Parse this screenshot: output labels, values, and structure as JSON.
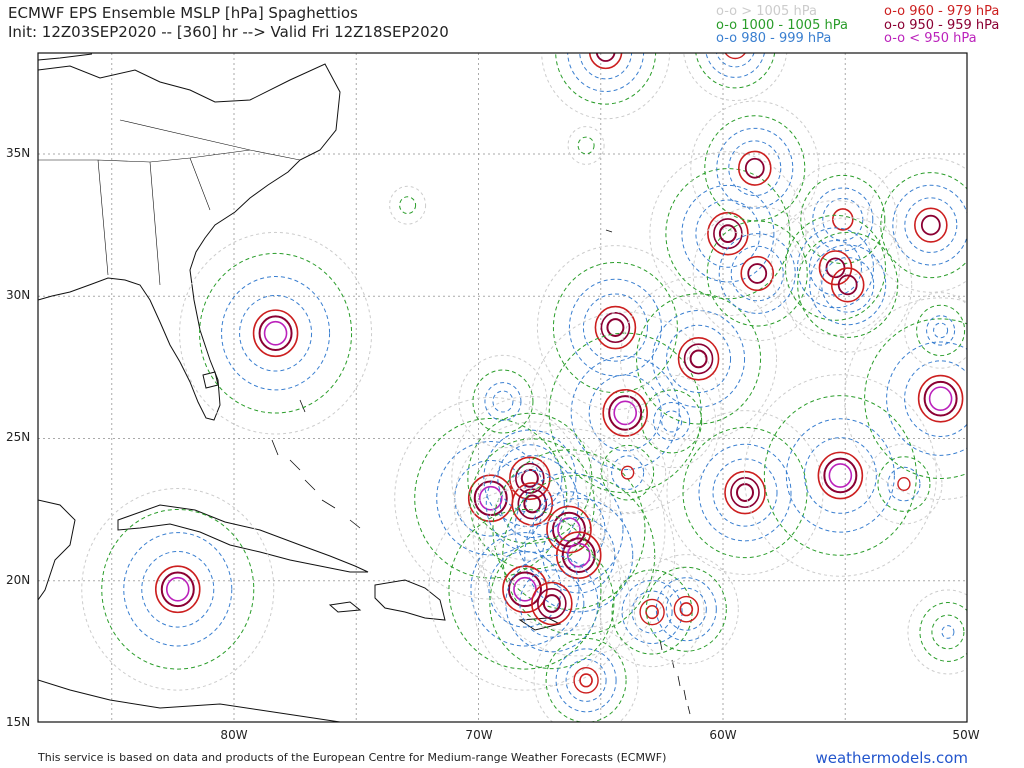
{
  "header": {
    "title_line1": "ECMWF EPS Ensemble MSLP [hPa] Spaghettios",
    "title_line2": "Init: 12Z03SEP2020 -- [360] hr --> Valid Fri 12Z18SEP2020"
  },
  "legend": [
    {
      "label": "o-o > 1005 hPa",
      "color": "#cccccc"
    },
    {
      "label": "o-o 1000 - 1005 hPa",
      "color": "#2a9d2a"
    },
    {
      "label": "o-o 980 - 999 hPa",
      "color": "#3a7fd0"
    },
    {
      "label": "o-o 960 - 979 hPa",
      "color": "#cc1f1f"
    },
    {
      "label": "o-o 950 - 959 hPa",
      "color": "#8b0033"
    },
    {
      "label": "o-o < 950 hPa",
      "color": "#bb22bb"
    }
  ],
  "axes": {
    "lat_labels": [
      "35N",
      "30N",
      "25N",
      "20N",
      "15N"
    ],
    "lon_labels": [
      "80W",
      "70W",
      "60W",
      "50W"
    ]
  },
  "footer": {
    "credit": "This service is based on data and products of the European Centre for Medium-range Weather Forecasts (ECMWF)",
    "brand": "weathermodels.com"
  },
  "storms": [
    {
      "lon": -78.3,
      "lat": 28.7,
      "min": "950"
    },
    {
      "lon": -82.3,
      "lat": 19.7,
      "min": "950"
    },
    {
      "lon": -64.4,
      "lat": 28.9,
      "min": "955"
    },
    {
      "lon": -64.0,
      "lat": 25.9,
      "min": "950"
    },
    {
      "lon": -61.0,
      "lat": 27.8,
      "min": "955"
    },
    {
      "lon": -69.5,
      "lat": 22.9,
      "min": "950"
    },
    {
      "lon": -67.9,
      "lat": 23.6,
      "min": "955"
    },
    {
      "lon": -67.8,
      "lat": 22.7,
      "min": "955"
    },
    {
      "lon": -66.3,
      "lat": 21.8,
      "min": "950"
    },
    {
      "lon": -65.9,
      "lat": 20.9,
      "min": "950"
    },
    {
      "lon": -68.1,
      "lat": 19.7,
      "min": "950"
    },
    {
      "lon": -67.0,
      "lat": 19.2,
      "min": "955"
    },
    {
      "lon": -65.6,
      "lat": 16.5,
      "min": "965"
    },
    {
      "lon": -62.9,
      "lat": 18.9,
      "min": "965"
    },
    {
      "lon": -61.5,
      "lat": 19.0,
      "min": "965"
    },
    {
      "lon": -59.1,
      "lat": 23.1,
      "min": "955"
    },
    {
      "lon": -55.2,
      "lat": 23.7,
      "min": "950"
    },
    {
      "lon": -52.6,
      "lat": 23.4,
      "min": "975"
    },
    {
      "lon": -51.1,
      "lat": 26.4,
      "min": "950"
    },
    {
      "lon": -51.1,
      "lat": 28.8,
      "min": "985"
    },
    {
      "lon": -51.5,
      "lat": 32.5,
      "min": "960"
    },
    {
      "lon": -55.1,
      "lat": 32.7,
      "min": "970"
    },
    {
      "lon": -59.8,
      "lat": 32.2,
      "min": "955"
    },
    {
      "lon": -58.7,
      "lat": 34.5,
      "min": "960"
    },
    {
      "lon": -58.6,
      "lat": 30.8,
      "min": "960"
    },
    {
      "lon": -55.4,
      "lat": 31.0,
      "min": "960"
    },
    {
      "lon": -54.9,
      "lat": 30.4,
      "min": "960"
    },
    {
      "lon": -64.8,
      "lat": 38.6,
      "min": "960"
    },
    {
      "lon": -59.5,
      "lat": 38.8,
      "min": "965"
    },
    {
      "lon": -63.9,
      "lat": 23.8,
      "min": "975"
    },
    {
      "lon": -69.0,
      "lat": 26.3,
      "min": "990"
    },
    {
      "lon": -62.1,
      "lat": 25.6,
      "min": "990"
    },
    {
      "lon": -50.8,
      "lat": 18.2,
      "min": "1000"
    },
    {
      "lon": -65.6,
      "lat": 35.3,
      "min": "1003"
    },
    {
      "lon": -72.9,
      "lat": 33.2,
      "min": "1003"
    }
  ]
}
